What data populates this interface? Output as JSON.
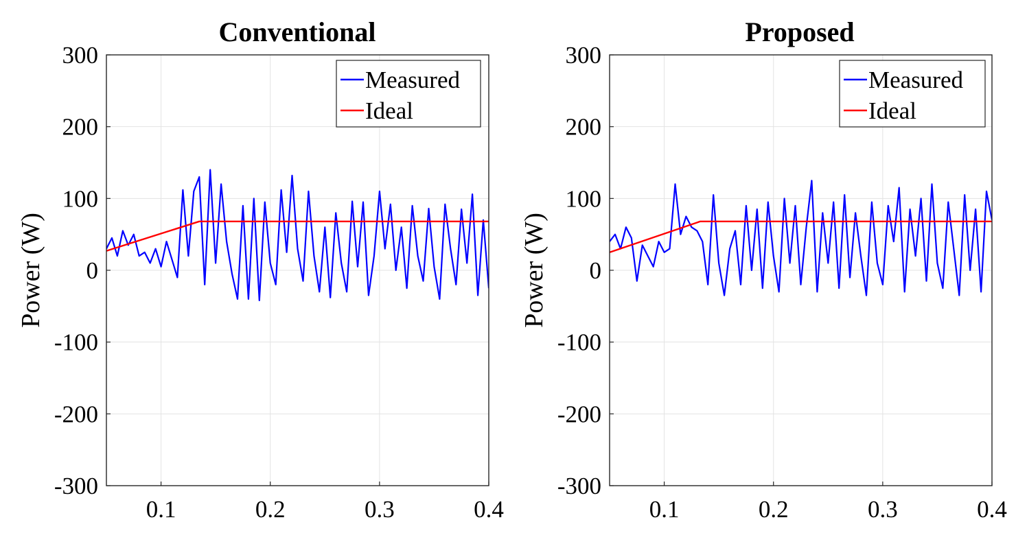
{
  "chart_data": [
    {
      "type": "line",
      "title": "Conventional",
      "xlabel": "",
      "ylabel": "Power (W)",
      "xlim": [
        0.05,
        0.4
      ],
      "ylim": [
        -300,
        300
      ],
      "x_ticks": [
        "0.1",
        "0.2",
        "0.3",
        "0.4"
      ],
      "y_ticks": [
        "300",
        "200",
        "100",
        "0",
        "-100",
        "-200",
        "-300"
      ],
      "grid": true,
      "legend_position": "top-right",
      "series": [
        {
          "name": "Measured",
          "color": "#0000ff",
          "x": [
            0.05,
            0.055,
            0.06,
            0.065,
            0.07,
            0.075,
            0.08,
            0.085,
            0.09,
            0.095,
            0.1,
            0.105,
            0.11,
            0.115,
            0.12,
            0.125,
            0.13,
            0.135,
            0.14,
            0.145,
            0.15,
            0.155,
            0.16,
            0.165,
            0.17,
            0.175,
            0.18,
            0.185,
            0.19,
            0.195,
            0.2,
            0.205,
            0.21,
            0.215,
            0.22,
            0.225,
            0.23,
            0.235,
            0.24,
            0.245,
            0.25,
            0.255,
            0.26,
            0.265,
            0.27,
            0.275,
            0.28,
            0.285,
            0.29,
            0.295,
            0.3,
            0.305,
            0.31,
            0.315,
            0.32,
            0.325,
            0.33,
            0.335,
            0.34,
            0.345,
            0.35,
            0.355,
            0.36,
            0.365,
            0.37,
            0.375,
            0.38,
            0.385,
            0.39,
            0.395,
            0.4
          ],
          "y": [
            30,
            45,
            20,
            55,
            35,
            50,
            20,
            25,
            10,
            30,
            5,
            40,
            15,
            -10,
            112,
            20,
            110,
            130,
            -20,
            140,
            10,
            120,
            40,
            -5,
            -40,
            90,
            -40,
            100,
            -42,
            95,
            10,
            -20,
            112,
            25,
            132,
            30,
            -15,
            110,
            20,
            -30,
            60,
            -38,
            80,
            10,
            -30,
            96,
            5,
            95,
            -35,
            20,
            110,
            30,
            92,
            0,
            60,
            -25,
            90,
            20,
            -15,
            86,
            5,
            -40,
            92,
            30,
            -20,
            85,
            10,
            106,
            -35,
            70,
            -25
          ]
        },
        {
          "name": "Ideal",
          "color": "#ff0000",
          "x": [
            0.05,
            0.135,
            0.4
          ],
          "y": [
            27,
            68,
            68
          ]
        }
      ]
    },
    {
      "type": "line",
      "title": "Proposed",
      "xlabel": "",
      "ylabel": "Power (W)",
      "xlim": [
        0.05,
        0.4
      ],
      "ylim": [
        -300,
        300
      ],
      "x_ticks": [
        "0.1",
        "0.2",
        "0.3",
        "0.4"
      ],
      "y_ticks": [
        "300",
        "200",
        "100",
        "0",
        "-100",
        "-200",
        "-300"
      ],
      "grid": true,
      "legend_position": "top-right",
      "series": [
        {
          "name": "Measured",
          "color": "#0000ff",
          "x": [
            0.05,
            0.055,
            0.06,
            0.065,
            0.07,
            0.075,
            0.08,
            0.085,
            0.09,
            0.095,
            0.1,
            0.105,
            0.11,
            0.115,
            0.12,
            0.125,
            0.13,
            0.135,
            0.14,
            0.145,
            0.15,
            0.155,
            0.16,
            0.165,
            0.17,
            0.175,
            0.18,
            0.185,
            0.19,
            0.195,
            0.2,
            0.205,
            0.21,
            0.215,
            0.22,
            0.225,
            0.23,
            0.235,
            0.24,
            0.245,
            0.25,
            0.255,
            0.26,
            0.265,
            0.27,
            0.275,
            0.28,
            0.285,
            0.29,
            0.295,
            0.3,
            0.305,
            0.31,
            0.315,
            0.32,
            0.325,
            0.33,
            0.335,
            0.34,
            0.345,
            0.35,
            0.355,
            0.36,
            0.365,
            0.37,
            0.375,
            0.38,
            0.385,
            0.39,
            0.395,
            0.4
          ],
          "y": [
            40,
            50,
            30,
            60,
            45,
            -15,
            35,
            20,
            5,
            40,
            25,
            30,
            120,
            50,
            75,
            60,
            55,
            40,
            -20,
            105,
            10,
            -35,
            30,
            55,
            -20,
            90,
            0,
            85,
            -25,
            95,
            20,
            -30,
            100,
            10,
            90,
            -20,
            60,
            125,
            -30,
            80,
            10,
            95,
            -25,
            105,
            -10,
            80,
            20,
            -35,
            95,
            10,
            -20,
            90,
            40,
            115,
            -30,
            85,
            20,
            100,
            -15,
            120,
            10,
            -25,
            95,
            30,
            -35,
            105,
            0,
            85,
            -30,
            110,
            70
          ]
        },
        {
          "name": "Ideal",
          "color": "#ff0000",
          "x": [
            0.05,
            0.133,
            0.4
          ],
          "y": [
            25,
            68,
            68
          ]
        }
      ]
    }
  ]
}
